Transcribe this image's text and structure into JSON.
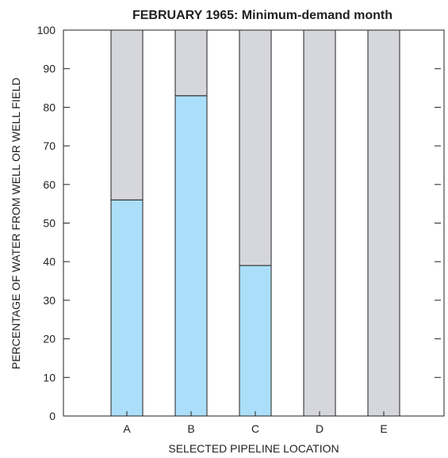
{
  "chart_data": {
    "type": "bar",
    "stacked": true,
    "title": "FEBRUARY 1965: Minimum-demand month",
    "xlabel": "SELECTED PIPELINE LOCATION",
    "ylabel": "PERCENTAGE OF WATER FROM WELL OR WELL FIELD",
    "categories": [
      "A",
      "B",
      "C",
      "D",
      "E"
    ],
    "ylim": [
      0,
      100
    ],
    "yticks": [
      0,
      10,
      20,
      30,
      40,
      50,
      60,
      70,
      80,
      90,
      100
    ],
    "series": [
      {
        "color": "#abdff9",
        "values": [
          56,
          83,
          39,
          0,
          0
        ]
      },
      {
        "color": "#d5d7dc",
        "values": [
          44,
          17,
          61,
          100,
          100
        ]
      }
    ],
    "grid": false,
    "legend": "none"
  }
}
